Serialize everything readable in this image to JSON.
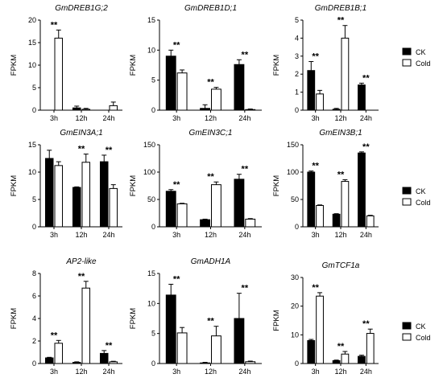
{
  "figure": {
    "legend": {
      "ck": "CK",
      "cold": "Cold"
    },
    "colors": {
      "ck": "#000000",
      "cold": "#ffffff",
      "stroke": "#000000"
    }
  },
  "chart_data": [
    {
      "type": "bar",
      "title": "GmDREB1G;2",
      "ylabel": "FPKM",
      "categories": [
        "3h",
        "12h",
        "24h"
      ],
      "ylim": [
        0,
        20
      ],
      "yticks": [
        0,
        5,
        10,
        15,
        20
      ],
      "series": [
        {
          "name": "CK",
          "values": [
            0,
            0.5,
            0
          ],
          "errors": [
            0,
            0.4,
            0
          ]
        },
        {
          "name": "Cold",
          "values": [
            16,
            0.2,
            1.0
          ],
          "errors": [
            1.8,
            0.2,
            0.8
          ]
        }
      ],
      "significance": [
        "**",
        "",
        ""
      ]
    },
    {
      "type": "bar",
      "title": "GmDREB1D;1",
      "ylabel": "FPKM",
      "categories": [
        "3h",
        "12h",
        "24h"
      ],
      "ylim": [
        0,
        15
      ],
      "yticks": [
        0,
        5,
        10,
        15
      ],
      "series": [
        {
          "name": "CK",
          "values": [
            9,
            0.3,
            7.6
          ],
          "errors": [
            1.0,
            0.6,
            0.8
          ]
        },
        {
          "name": "Cold",
          "values": [
            6.2,
            3.5,
            0.1
          ],
          "errors": [
            0.5,
            0.3,
            0.1
          ]
        }
      ],
      "significance": [
        "**",
        "**",
        "**"
      ]
    },
    {
      "type": "bar",
      "title": "GmDREB1B;1",
      "ylabel": "FPKM",
      "categories": [
        "3h",
        "12h",
        "24h"
      ],
      "ylim": [
        0,
        5
      ],
      "yticks": [
        0,
        1,
        2,
        3,
        4,
        5
      ],
      "series": [
        {
          "name": "CK",
          "values": [
            2.2,
            0.05,
            1.4
          ],
          "errors": [
            0.5,
            0.05,
            0.1
          ]
        },
        {
          "name": "Cold",
          "values": [
            0.9,
            4.0,
            0.0
          ],
          "errors": [
            0.2,
            0.7,
            0
          ]
        }
      ],
      "significance": [
        "**",
        "**",
        "**"
      ]
    },
    {
      "type": "bar",
      "title": "GmEIN3A;1",
      "ylabel": "FPKM",
      "categories": [
        "3h",
        "12h",
        "24h"
      ],
      "ylim": [
        0,
        15
      ],
      "yticks": [
        0,
        5,
        10,
        15
      ],
      "series": [
        {
          "name": "CK",
          "values": [
            12.5,
            7.2,
            11.9
          ],
          "errors": [
            1.5,
            0.1,
            1.2
          ]
        },
        {
          "name": "Cold",
          "values": [
            11.2,
            11.8,
            7.0
          ],
          "errors": [
            0.7,
            1.5,
            0.7
          ]
        }
      ],
      "significance": [
        "",
        "**",
        "**"
      ]
    },
    {
      "type": "bar",
      "title": "GmEIN3C;1",
      "ylabel": "FPKM",
      "categories": [
        "3h",
        "12h",
        "24h"
      ],
      "ylim": [
        0,
        150
      ],
      "yticks": [
        0,
        50,
        100,
        150
      ],
      "series": [
        {
          "name": "CK",
          "values": [
            65,
            13,
            87
          ],
          "errors": [
            3,
            1,
            9
          ]
        },
        {
          "name": "Cold",
          "values": [
            42,
            77,
            14
          ],
          "errors": [
            1,
            5,
            1
          ]
        }
      ],
      "significance": [
        "**",
        "**",
        "**"
      ]
    },
    {
      "type": "bar",
      "title": "GmEIN3B;1",
      "ylabel": "FPKM",
      "categories": [
        "3h",
        "12h",
        "24h"
      ],
      "ylim": [
        0,
        150
      ],
      "yticks": [
        0,
        50,
        100,
        150
      ],
      "series": [
        {
          "name": "CK",
          "values": [
            100,
            23,
            135
          ],
          "errors": [
            2,
            1,
            2
          ]
        },
        {
          "name": "Cold",
          "values": [
            39,
            83,
            20
          ],
          "errors": [
            1,
            3,
            1
          ]
        }
      ],
      "significance": [
        "**",
        "**",
        "**"
      ]
    },
    {
      "type": "bar",
      "title": "AP2-like",
      "ylabel": "FPKM",
      "categories": [
        "3h",
        "12h",
        "24h"
      ],
      "ylim": [
        0,
        8
      ],
      "yticks": [
        0,
        2,
        4,
        6,
        8
      ],
      "series": [
        {
          "name": "CK",
          "values": [
            0.5,
            0.1,
            0.9
          ],
          "errors": [
            0.05,
            0.05,
            0.25
          ]
        },
        {
          "name": "Cold",
          "values": [
            1.8,
            6.7,
            0.15
          ],
          "errors": [
            0.25,
            0.6,
            0.05
          ]
        }
      ],
      "significance": [
        "**",
        "**",
        "**"
      ]
    },
    {
      "type": "bar",
      "title": "GmADH1A",
      "ylabel": "FPKM",
      "categories": [
        "3h",
        "12h",
        "24h"
      ],
      "ylim": [
        0,
        15
      ],
      "yticks": [
        0,
        5,
        10,
        15
      ],
      "series": [
        {
          "name": "CK",
          "values": [
            11.4,
            0.1,
            7.5
          ],
          "errors": [
            1.8,
            0.1,
            4.2
          ]
        },
        {
          "name": "Cold",
          "values": [
            5.1,
            4.6,
            0.3
          ],
          "errors": [
            0.9,
            1.6,
            0.1
          ]
        }
      ],
      "significance": [
        "**",
        "**",
        "**"
      ]
    },
    {
      "type": "bar",
      "title": "GmTCF1a",
      "ylabel": "FPKM",
      "categories": [
        "3h",
        "12h",
        "24h"
      ],
      "ylim": [
        0,
        30
      ],
      "yticks": [
        0,
        10,
        20,
        30
      ],
      "series": [
        {
          "name": "CK",
          "values": [
            8.0,
            1.0,
            2.5
          ],
          "errors": [
            0.4,
            0.2,
            0.4
          ]
        },
        {
          "name": "Cold",
          "values": [
            23.5,
            3.3,
            10.5
          ],
          "errors": [
            1.2,
            0.9,
            1.5
          ]
        }
      ],
      "significance": [
        "**",
        "**",
        "**"
      ]
    }
  ]
}
